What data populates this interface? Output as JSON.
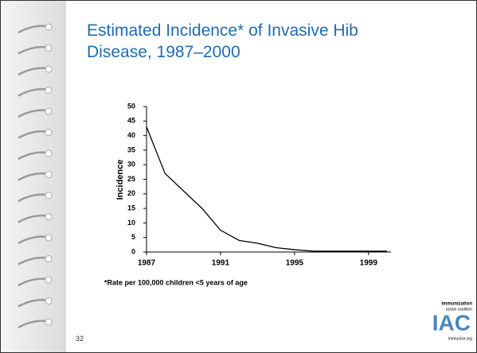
{
  "chart_data": {
    "type": "line",
    "title": "Estimated Incidence* of Invasive Hib Disease, 1987–2000",
    "y_label": "Incidence",
    "footnote": "*Rate per 100,000 children <5 years of age",
    "x": [
      1987,
      1988,
      1989,
      1990,
      1991,
      1992,
      1993,
      1994,
      1995,
      1996,
      1997,
      1998,
      1999,
      2000
    ],
    "values": [
      43,
      27,
      21,
      15,
      7.5,
      4,
      3,
      1.5,
      0.8,
      0.3,
      0.3,
      0.3,
      0.3,
      0.3
    ],
    "color": "#000000",
    "xlim": [
      1987,
      2000
    ],
    "xticks": [
      1987,
      1991,
      1995,
      1999
    ],
    "ylim": [
      0,
      50
    ],
    "yticks": [
      0,
      5,
      10,
      15,
      20,
      25,
      30,
      35,
      40,
      45,
      50
    ]
  },
  "slide_number": "32",
  "logo": {
    "line1": "immunization",
    "line2": "action coalition",
    "mark": "IAC",
    "url": "immunize.org"
  }
}
